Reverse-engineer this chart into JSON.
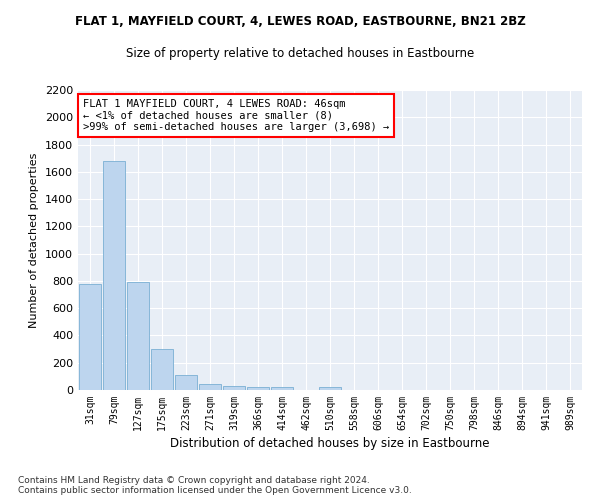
{
  "title": "FLAT 1, MAYFIELD COURT, 4, LEWES ROAD, EASTBOURNE, BN21 2BZ",
  "subtitle": "Size of property relative to detached houses in Eastbourne",
  "xlabel": "Distribution of detached houses by size in Eastbourne",
  "ylabel": "Number of detached properties",
  "bar_color": "#bdd5ee",
  "bar_edge_color": "#7aafd4",
  "background_color": "#e8eef6",
  "categories": [
    "31sqm",
    "79sqm",
    "127sqm",
    "175sqm",
    "223sqm",
    "271sqm",
    "319sqm",
    "366sqm",
    "414sqm",
    "462sqm",
    "510sqm",
    "558sqm",
    "606sqm",
    "654sqm",
    "702sqm",
    "750sqm",
    "798sqm",
    "846sqm",
    "894sqm",
    "941sqm",
    "989sqm"
  ],
  "values": [
    775,
    1680,
    795,
    300,
    110,
    43,
    30,
    22,
    22,
    0,
    22,
    0,
    0,
    0,
    0,
    0,
    0,
    0,
    0,
    0,
    0
  ],
  "ylim": [
    0,
    2200
  ],
  "yticks": [
    0,
    200,
    400,
    600,
    800,
    1000,
    1200,
    1400,
    1600,
    1800,
    2000,
    2200
  ],
  "annotation_text": "FLAT 1 MAYFIELD COURT, 4 LEWES ROAD: 46sqm\n← <1% of detached houses are smaller (8)\n>99% of semi-detached houses are larger (3,698) →",
  "footer": "Contains HM Land Registry data © Crown copyright and database right 2024.\nContains public sector information licensed under the Open Government Licence v3.0."
}
